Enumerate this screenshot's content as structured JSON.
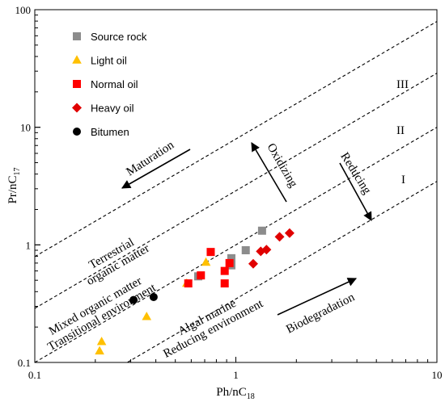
{
  "chart_data": {
    "type": "scatter",
    "x_scale": "log",
    "y_scale": "log",
    "xlim": [
      0.1,
      10
    ],
    "ylim": [
      0.1,
      100
    ],
    "x_ticks": [
      "0.1",
      "1",
      "10"
    ],
    "y_ticks": [
      "0.1",
      "1",
      "10",
      "100"
    ],
    "xlabel": {
      "base": "Ph/nC",
      "sub": "18"
    },
    "ylabel": {
      "base": "Pr/nC",
      "sub": "17"
    },
    "legend_position": "top-left",
    "series": [
      {
        "name": "Source rock",
        "marker": "square",
        "color": "#8c8c8c",
        "points": [
          [
            0.65,
            0.54
          ],
          [
            0.95,
            0.77
          ],
          [
            0.95,
            0.67
          ],
          [
            1.12,
            0.9
          ],
          [
            1.35,
            1.32
          ]
        ]
      },
      {
        "name": "Light oil",
        "marker": "triangle",
        "color": "#ffc000",
        "points": [
          [
            0.21,
            0.125
          ],
          [
            0.215,
            0.15
          ],
          [
            0.36,
            0.245
          ],
          [
            0.57,
            0.47
          ],
          [
            0.71,
            0.71
          ]
        ]
      },
      {
        "name": "Normal oil",
        "marker": "square",
        "color": "#ff0000",
        "points": [
          [
            0.58,
            0.47
          ],
          [
            0.67,
            0.55
          ],
          [
            0.75,
            0.87
          ],
          [
            0.88,
            0.47
          ],
          [
            0.88,
            0.6
          ],
          [
            0.93,
            0.7
          ]
        ]
      },
      {
        "name": "Heavy oil",
        "marker": "diamond",
        "color": "#e00000",
        "points": [
          [
            1.22,
            0.69
          ],
          [
            1.33,
            0.88
          ],
          [
            1.42,
            0.91
          ],
          [
            1.65,
            1.17
          ],
          [
            1.85,
            1.26
          ]
        ]
      },
      {
        "name": "Bitumen",
        "marker": "circle",
        "color": "#000000",
        "points": [
          [
            0.31,
            0.34
          ],
          [
            0.39,
            0.36
          ]
        ]
      }
    ],
    "boundary_lines_label": "dashed",
    "zone_labels": [
      "III",
      "II",
      "I"
    ],
    "annotations": {
      "maturation": "Maturation",
      "oxidizing": "Oxidizing",
      "reducing": "Reducing",
      "biodegradation": "Biodegradation",
      "terrestrial_1": "Terrestrial",
      "terrestrial_2": "organic matter",
      "mixed_1": "Mixed organic matter",
      "mixed_2": "Transitional environment",
      "algal_1": "Algal marine",
      "algal_2": "Reducing environment"
    }
  }
}
